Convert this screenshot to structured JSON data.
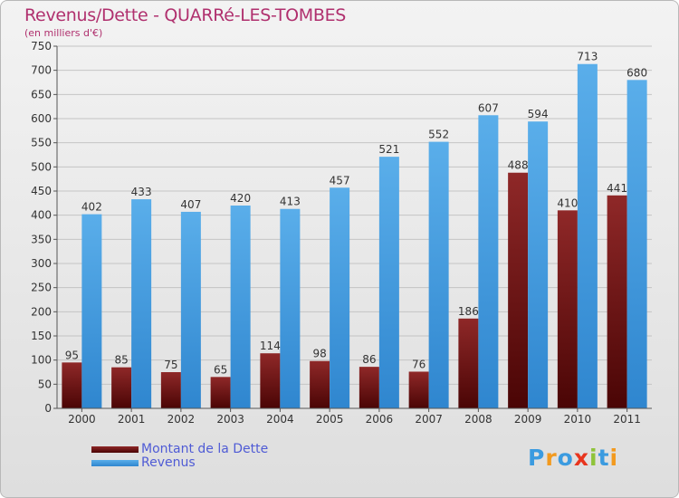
{
  "title": "Revenus/Dette - QUARRé-LES-TOMBES",
  "subtitle": "(en milliers d'€)",
  "legend": [
    {
      "label": "Montant de la Dette",
      "color": "#6b0f0f"
    },
    {
      "label": "Revenus",
      "color": "#4ca0e4"
    }
  ],
  "logo": {
    "text": "Proxiti",
    "letters": [
      {
        "ch": "P",
        "color": "#3b9be0"
      },
      {
        "ch": "r",
        "color": "#f29a1f"
      },
      {
        "ch": "o",
        "color": "#3b9be0"
      },
      {
        "ch": "x",
        "color": "#e8351e"
      },
      {
        "ch": "i",
        "color": "#8fc33a"
      },
      {
        "ch": "t",
        "color": "#3b9be0"
      },
      {
        "ch": "i",
        "color": "#f29a1f"
      }
    ]
  },
  "chart_data": {
    "type": "bar",
    "categories": [
      "2000",
      "2001",
      "2002",
      "2003",
      "2004",
      "2005",
      "2006",
      "2007",
      "2008",
      "2009",
      "2010",
      "2011"
    ],
    "series": [
      {
        "name": "Montant de la Dette",
        "values": [
          95,
          85,
          75,
          65,
          114,
          98,
          86,
          76,
          186,
          488,
          410,
          441
        ],
        "color": "#6b0f0f"
      },
      {
        "name": "Revenus",
        "values": [
          402,
          433,
          407,
          420,
          413,
          457,
          521,
          552,
          607,
          594,
          713,
          680
        ],
        "color": "#4ca0e4"
      }
    ],
    "ylim": [
      0,
      750
    ],
    "yticks": [
      0,
      50,
      100,
      150,
      200,
      250,
      300,
      350,
      400,
      450,
      500,
      550,
      600,
      650,
      700,
      750
    ],
    "grid": true,
    "legend_position": "bottom-left"
  }
}
